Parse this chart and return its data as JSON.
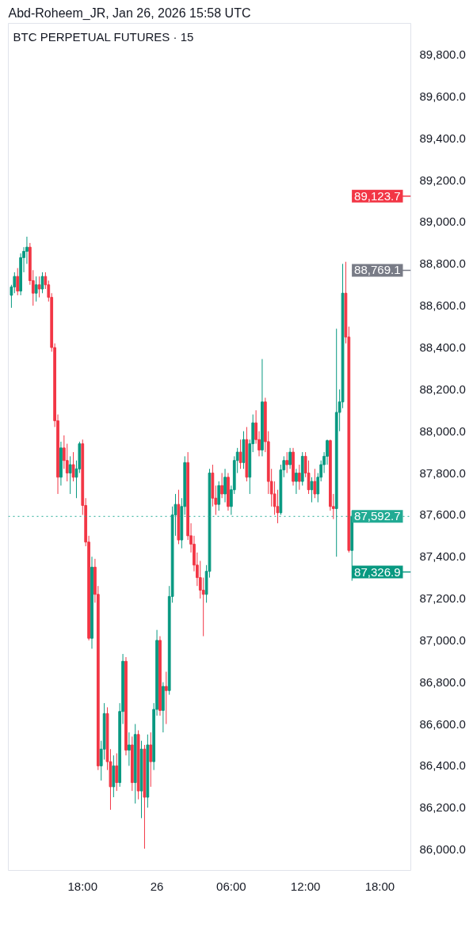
{
  "chart_data": {
    "type": "candlestick",
    "title": "BTC PERPETUAL FUTURES · 15",
    "subtitle": "Abd-Roheem_JR, Jan 26, 2026 15:58 UTC",
    "x": [
      "2026-01-25T12:15",
      "2026-01-25T12:30",
      "2026-01-25T12:45",
      "2026-01-25T13:00",
      "2026-01-25T13:15",
      "2026-01-25T13:30",
      "2026-01-25T13:45",
      "2026-01-25T14:00",
      "2026-01-25T14:15",
      "2026-01-25T14:30",
      "2026-01-25T14:45",
      "2026-01-25T15:00",
      "2026-01-25T15:15",
      "2026-01-25T15:30",
      "2026-01-25T15:45",
      "2026-01-25T16:00",
      "2026-01-25T16:15",
      "2026-01-25T16:30",
      "2026-01-25T16:45",
      "2026-01-25T17:00",
      "2026-01-25T17:15",
      "2026-01-25T17:30",
      "2026-01-25T17:45",
      "2026-01-25T18:00",
      "2026-01-25T18:15",
      "2026-01-25T18:30",
      "2026-01-25T18:45",
      "2026-01-25T19:00",
      "2026-01-25T19:15",
      "2026-01-25T19:30",
      "2026-01-25T19:45",
      "2026-01-25T20:00",
      "2026-01-25T20:15",
      "2026-01-25T20:30",
      "2026-01-25T20:45",
      "2026-01-25T21:00",
      "2026-01-25T21:15",
      "2026-01-25T21:30",
      "2026-01-25T21:45",
      "2026-01-25T22:00",
      "2026-01-25T22:15",
      "2026-01-25T22:30",
      "2026-01-25T22:45",
      "2026-01-25T23:00",
      "2026-01-25T23:15",
      "2026-01-25T23:30",
      "2026-01-25T23:45",
      "2026-01-26T00:00",
      "2026-01-26T00:15",
      "2026-01-26T00:30",
      "2026-01-26T00:45",
      "2026-01-26T01:00",
      "2026-01-26T01:15",
      "2026-01-26T01:30",
      "2026-01-26T01:45",
      "2026-01-26T02:00",
      "2026-01-26T02:15",
      "2026-01-26T02:30",
      "2026-01-26T02:45",
      "2026-01-26T03:00",
      "2026-01-26T03:15",
      "2026-01-26T03:30",
      "2026-01-26T03:45",
      "2026-01-26T04:00",
      "2026-01-26T04:15",
      "2026-01-26T04:30",
      "2026-01-26T04:45",
      "2026-01-26T05:00",
      "2026-01-26T05:15",
      "2026-01-26T05:30",
      "2026-01-26T05:45",
      "2026-01-26T06:00",
      "2026-01-26T06:15",
      "2026-01-26T06:30",
      "2026-01-26T06:45",
      "2026-01-26T07:00",
      "2026-01-26T07:15",
      "2026-01-26T07:30",
      "2026-01-26T07:45",
      "2026-01-26T08:00",
      "2026-01-26T08:15",
      "2026-01-26T08:30",
      "2026-01-26T08:45",
      "2026-01-26T09:00",
      "2026-01-26T09:15",
      "2026-01-26T09:30",
      "2026-01-26T09:45",
      "2026-01-26T10:00",
      "2026-01-26T10:15",
      "2026-01-26T10:30",
      "2026-01-26T10:45",
      "2026-01-26T11:00",
      "2026-01-26T11:15",
      "2026-01-26T11:30",
      "2026-01-26T11:45",
      "2026-01-26T12:00",
      "2026-01-26T12:15",
      "2026-01-26T12:30",
      "2026-01-26T12:45",
      "2026-01-26T13:00",
      "2026-01-26T13:15",
      "2026-01-26T13:30",
      "2026-01-26T13:45",
      "2026-01-26T14:00",
      "2026-01-26T14:15",
      "2026-01-26T14:30",
      "2026-01-26T14:45",
      "2026-01-26T15:00",
      "2026-01-26T15:15",
      "2026-01-26T15:30",
      "2026-01-26T15:45"
    ],
    "ohlc": [
      [
        88650,
        88700,
        88590,
        88690
      ],
      [
        88690,
        88760,
        88660,
        88740
      ],
      [
        88740,
        88780,
        88650,
        88670
      ],
      [
        88670,
        88850,
        88650,
        88830
      ],
      [
        88830,
        88880,
        88760,
        88860
      ],
      [
        88860,
        88930,
        88800,
        88880
      ],
      [
        88880,
        88900,
        88700,
        88720
      ],
      [
        88720,
        88770,
        88600,
        88660
      ],
      [
        88660,
        88740,
        88620,
        88700
      ],
      [
        88700,
        88740,
        88640,
        88680
      ],
      [
        88680,
        88760,
        88660,
        88740
      ],
      [
        88740,
        88760,
        88680,
        88700
      ],
      [
        88700,
        88720,
        88620,
        88640
      ],
      [
        88640,
        88660,
        88380,
        88400
      ],
      [
        88400,
        88420,
        88020,
        88050
      ],
      [
        88050,
        88080,
        87700,
        87780
      ],
      [
        87780,
        87950,
        87740,
        87920
      ],
      [
        87920,
        87980,
        87820,
        87860
      ],
      [
        87860,
        87940,
        87760,
        87800
      ],
      [
        87800,
        87880,
        87700,
        87840
      ],
      [
        87840,
        87900,
        87760,
        87780
      ],
      [
        87780,
        87860,
        87680,
        87820
      ],
      [
        87820,
        87950,
        87800,
        87940
      ],
      [
        87940,
        87960,
        87600,
        87645
      ],
      [
        87645,
        87680,
        87450,
        87470
      ],
      [
        87470,
        87500,
        87000,
        87010
      ],
      [
        87010,
        87400,
        86960,
        87350
      ],
      [
        87350,
        87390,
        87180,
        87220
      ],
      [
        87220,
        87260,
        86380,
        86400
      ],
      [
        86400,
        86520,
        86330,
        86480
      ],
      [
        86480,
        86700,
        86430,
        86650
      ],
      [
        86650,
        86680,
        86380,
        86420
      ],
      [
        86420,
        86480,
        86190,
        86300
      ],
      [
        86300,
        86450,
        86250,
        86400
      ],
      [
        86400,
        86460,
        86280,
        86320
      ],
      [
        86320,
        86700,
        86300,
        86660
      ],
      [
        86660,
        86935,
        86600,
        86900
      ],
      [
        86900,
        86920,
        86450,
        86475
      ],
      [
        86475,
        86560,
        86400,
        86500
      ],
      [
        86500,
        86540,
        86280,
        86320
      ],
      [
        86320,
        86600,
        86220,
        86550
      ],
      [
        86550,
        86570,
        86240,
        86280
      ],
      [
        86280,
        86520,
        86150,
        86480
      ],
      [
        86480,
        86500,
        86004,
        86250
      ],
      [
        86250,
        86550,
        86200,
        86500
      ],
      [
        86500,
        86560,
        86300,
        86420
      ],
      [
        86420,
        86700,
        86380,
        86670
      ],
      [
        86670,
        87050,
        86640,
        87000
      ],
      [
        87000,
        87020,
        86640,
        86665
      ],
      [
        86665,
        86800,
        86560,
        86780
      ],
      [
        86780,
        86850,
        86600,
        86760
      ],
      [
        86760,
        87260,
        86740,
        87210
      ],
      [
        87210,
        87640,
        87180,
        87600
      ],
      [
        87600,
        87700,
        87500,
        87650
      ],
      [
        87650,
        87720,
        87460,
        87480
      ],
      [
        87480,
        87680,
        87440,
        87640
      ],
      [
        87640,
        87880,
        87600,
        87850
      ],
      [
        87850,
        87900,
        87480,
        87500
      ],
      [
        87500,
        87560,
        87420,
        87460
      ],
      [
        87460,
        87500,
        87330,
        87360
      ],
      [
        87360,
        87420,
        87260,
        87300
      ],
      [
        87300,
        87380,
        87200,
        87240
      ],
      [
        87240,
        87300,
        87020,
        87220
      ],
      [
        87220,
        87360,
        87180,
        87330
      ],
      [
        87330,
        87820,
        87300,
        87800
      ],
      [
        87800,
        87840,
        87640,
        87680
      ],
      [
        87680,
        87740,
        87600,
        87650
      ],
      [
        87650,
        87760,
        87620,
        87740
      ],
      [
        87740,
        87800,
        87680,
        87700
      ],
      [
        87700,
        87820,
        87660,
        87780
      ],
      [
        87780,
        87800,
        87620,
        87640
      ],
      [
        87640,
        87740,
        87600,
        87720
      ],
      [
        87720,
        87880,
        87700,
        87860
      ],
      [
        87860,
        87920,
        87800,
        87900
      ],
      [
        87900,
        87960,
        87820,
        87850
      ],
      [
        87850,
        88000,
        87820,
        87960
      ],
      [
        87960,
        88020,
        87760,
        87780
      ],
      [
        87780,
        87960,
        87700,
        87940
      ],
      [
        87940,
        88080,
        87900,
        88040
      ],
      [
        88040,
        88100,
        87940,
        87960
      ],
      [
        87960,
        88000,
        87880,
        87910
      ],
      [
        87910,
        88345,
        87880,
        88140
      ],
      [
        88140,
        88160,
        87900,
        87950
      ],
      [
        87950,
        88000,
        87700,
        87760
      ],
      [
        87760,
        87820,
        87640,
        87700
      ],
      [
        87700,
        87760,
        87600,
        87640
      ],
      [
        87640,
        87720,
        87560,
        87610
      ],
      [
        87610,
        87840,
        87600,
        87815
      ],
      [
        87815,
        87880,
        87780,
        87860
      ],
      [
        87860,
        87900,
        87800,
        87840
      ],
      [
        87840,
        87920,
        87820,
        87900
      ],
      [
        87900,
        87920,
        87740,
        87760
      ],
      [
        87760,
        87820,
        87700,
        87800
      ],
      [
        87800,
        87840,
        87720,
        87760
      ],
      [
        87760,
        87900,
        87740,
        87880
      ],
      [
        87880,
        87900,
        87780,
        87800
      ],
      [
        87800,
        87860,
        87700,
        87720
      ],
      [
        87720,
        87780,
        87660,
        87760
      ],
      [
        87760,
        87820,
        87680,
        87700
      ],
      [
        87700,
        87800,
        87660,
        87780
      ],
      [
        87780,
        87860,
        87760,
        87840
      ],
      [
        87840,
        87900,
        87800,
        87880
      ],
      [
        87880,
        87960,
        87840,
        87955
      ],
      [
        87955,
        87960,
        87620,
        87640
      ],
      [
        87640,
        87700,
        87580,
        87630
      ],
      [
        87630,
        88490,
        87400,
        88090
      ],
      [
        88090,
        88200,
        88000,
        88140
      ],
      [
        88140,
        88800,
        88110,
        88660
      ],
      [
        88660,
        88810,
        88420,
        88450
      ],
      [
        88450,
        88500,
        87420,
        87430
      ],
      [
        87430,
        87620,
        87285,
        87592.7
      ]
    ],
    "xlim": [
      "2026-01-25T12:00",
      "2026-01-26T20:30"
    ],
    "xticks": [
      {
        "value": "2026-01-25T18:00",
        "label": "18:00"
      },
      {
        "value": "2026-01-26T00:00",
        "label": "26"
      },
      {
        "value": "2026-01-26T06:00",
        "label": "06:00"
      },
      {
        "value": "2026-01-26T12:00",
        "label": "12:00"
      },
      {
        "value": "2026-01-26T18:00",
        "label": "18:00"
      }
    ],
    "ylim": [
      85900,
      89950
    ],
    "yticks": [
      {
        "value": 86000,
        "label": "86,000.0"
      },
      {
        "value": 86200,
        "label": "86,200.0"
      },
      {
        "value": 86400,
        "label": "86,400.0"
      },
      {
        "value": 86600,
        "label": "86,600.0"
      },
      {
        "value": 86800,
        "label": "86,800.0"
      },
      {
        "value": 87000,
        "label": "87,000.0"
      },
      {
        "value": 87200,
        "label": "87,200.0"
      },
      {
        "value": 87400,
        "label": "87,400.0"
      },
      {
        "value": 87600,
        "label": "87,600.0"
      },
      {
        "value": 87800,
        "label": "87,800.0"
      },
      {
        "value": 88000,
        "label": "88,000.0"
      },
      {
        "value": 88200,
        "label": "88,200.0"
      },
      {
        "value": 88400,
        "label": "88,400.0"
      },
      {
        "value": 88600,
        "label": "88,600.0"
      },
      {
        "value": 88800,
        "label": "88,800.0"
      },
      {
        "value": 89000,
        "label": "89,000.0"
      },
      {
        "value": 89200,
        "label": "89,200.0"
      },
      {
        "value": 89400,
        "label": "89,400.0"
      },
      {
        "value": 89600,
        "label": "89,600.0"
      },
      {
        "value": 89800,
        "label": "89,800.0"
      }
    ],
    "ref_lines": [
      {
        "axis": "y",
        "value": 89123.7,
        "label": "89,123.7",
        "color": "#f23645"
      },
      {
        "axis": "y",
        "value": 88769.1,
        "label": "88,769.1",
        "color": "#787b86"
      },
      {
        "axis": "y",
        "value": 87592.7,
        "label": "87,592.7",
        "color": "#22ab94",
        "line_style": "dotted"
      },
      {
        "axis": "y",
        "value": 87326.9,
        "label": "87,326.9",
        "color": "#089981"
      }
    ],
    "grid": false
  }
}
